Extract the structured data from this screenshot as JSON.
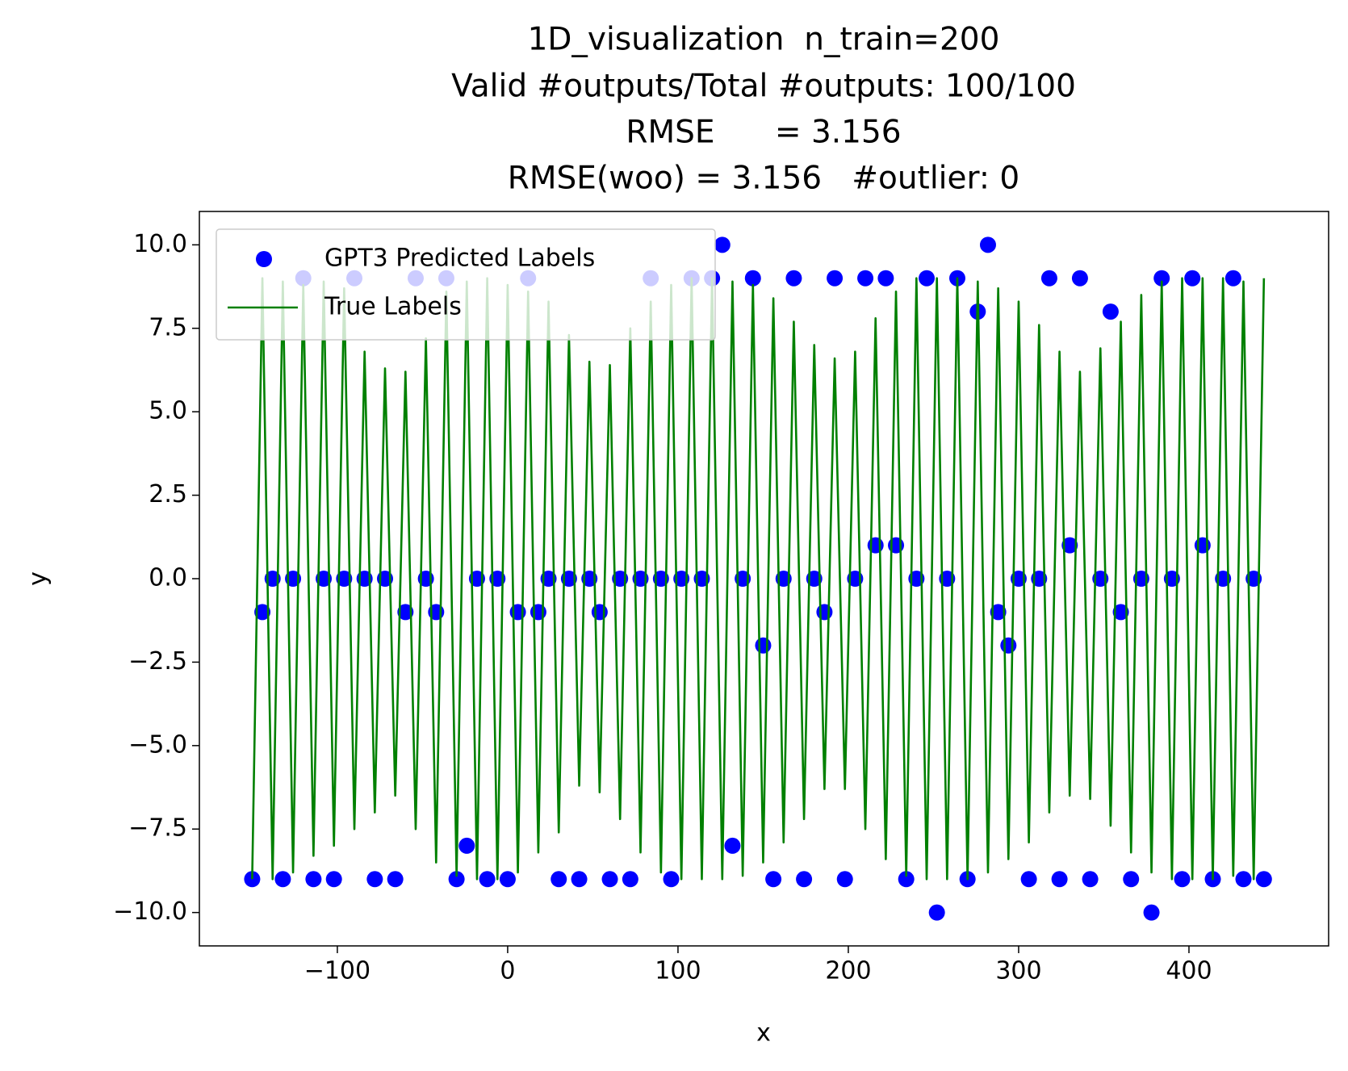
{
  "chart_data": {
    "type": "scatter",
    "title": [
      "1D_visualization  n_train=200",
      "Valid #outputs/Total #outputs: 100/100",
      "RMSE      = 3.156",
      "RMSE(woo) = 3.156   #outlier: 0"
    ],
    "x_label": "x",
    "y_label": "y",
    "x": [
      -150,
      -144,
      -138,
      -132,
      -126,
      -120,
      -114,
      -108,
      -102,
      -96,
      -90,
      -84,
      -78,
      -72,
      -66,
      -60,
      -54,
      -48,
      -42,
      -36,
      -30,
      -24,
      -18,
      -12,
      -6,
      0,
      6,
      12,
      18,
      24,
      30,
      36,
      42,
      48,
      54,
      60,
      66,
      72,
      78,
      84,
      90,
      96,
      102,
      108,
      114,
      120,
      126,
      132,
      138,
      144,
      150,
      156,
      162,
      168,
      174,
      180,
      186,
      192,
      198,
      204,
      210,
      216,
      222,
      228,
      234,
      240,
      246,
      252,
      258,
      264,
      270,
      276,
      282,
      288,
      294,
      300,
      306,
      312,
      318,
      324,
      330,
      336,
      342,
      348,
      354,
      360,
      366,
      372,
      378,
      384,
      390,
      396,
      402,
      408,
      414,
      420,
      426,
      432,
      438,
      444
    ],
    "series": [
      {
        "name": "GPT3 Predicted Labels",
        "type": "scatter",
        "color": "#0000ff",
        "values": [
          -9,
          -1,
          0,
          -9,
          0,
          9,
          -9,
          0,
          -9,
          0,
          9,
          0,
          -9,
          0,
          -9,
          -1,
          9,
          0,
          -1,
          9,
          -9,
          -8,
          0,
          -9,
          0,
          -9,
          -1,
          9,
          -1,
          0,
          -9,
          0,
          -9,
          0,
          -1,
          -9,
          0,
          -9,
          0,
          9,
          0,
          -9,
          0,
          9,
          0,
          9,
          10,
          -8,
          0,
          9,
          -2,
          -9,
          0,
          9,
          -9,
          0,
          -1,
          9,
          -9,
          0,
          9,
          1,
          9,
          1,
          -9,
          0,
          9,
          -10,
          0,
          9,
          -9,
          8,
          10,
          -1,
          -2,
          0,
          -9,
          0,
          9,
          -9,
          1,
          9,
          -9,
          0,
          8,
          -1,
          -9,
          0,
          -10,
          9,
          0,
          -9,
          9,
          1,
          -9,
          0,
          9,
          -9,
          0,
          -9
        ]
      },
      {
        "name": "True Labels",
        "type": "line",
        "color": "#008000",
        "values": [
          -9,
          9,
          -9,
          8.9,
          -8.8,
          8.8,
          -8.3,
          8.9,
          -8,
          8.7,
          -7.5,
          6.8,
          -7,
          6.3,
          -6.5,
          6.2,
          -7.5,
          7.2,
          -8.5,
          8.6,
          -8.9,
          8.9,
          -9,
          9,
          -9,
          8.8,
          -8.8,
          8.6,
          -8.2,
          8.3,
          -7.6,
          7.3,
          -6.2,
          6.5,
          -6.4,
          6.4,
          -7.2,
          7.5,
          -8.2,
          8.3,
          -8.8,
          8.8,
          -9,
          9,
          -9,
          9,
          -9,
          8.9,
          -8.9,
          8.8,
          -8.5,
          8.4,
          -7.9,
          7.7,
          -7.2,
          7,
          -6.3,
          6.6,
          -6.3,
          6.8,
          -7.5,
          7.8,
          -8.4,
          8.6,
          -8.9,
          9,
          -9,
          9,
          -9,
          9,
          -9,
          8.9,
          -8.8,
          8.7,
          -8.4,
          8.3,
          -7.9,
          7.6,
          -7,
          6.8,
          -6.5,
          6.2,
          -6.6,
          6.9,
          -7.4,
          7.7,
          -8.2,
          8.5,
          -8.8,
          8.9,
          -9,
          9,
          -9,
          9,
          -9,
          9,
          -8.9,
          8.9,
          -9,
          9
        ]
      }
    ],
    "xlim": [
      -181,
      482
    ],
    "ylim": [
      -11,
      11
    ],
    "xticks": [
      {
        "value": -100,
        "label": "−100"
      },
      0,
      100,
      200,
      300,
      400
    ],
    "yticks": [
      {
        "value": -10,
        "label": "−10.0"
      },
      {
        "value": -7.5,
        "label": "−7.5"
      },
      {
        "value": -5,
        "label": "−5.0"
      },
      {
        "value": -2.5,
        "label": "−2.5"
      },
      {
        "value": 0,
        "label": "0.0"
      },
      2.5,
      {
        "value": 5,
        "label": "5.0"
      },
      7.5,
      {
        "value": 10,
        "label": "10.0"
      }
    ],
    "legend": "upper left"
  }
}
